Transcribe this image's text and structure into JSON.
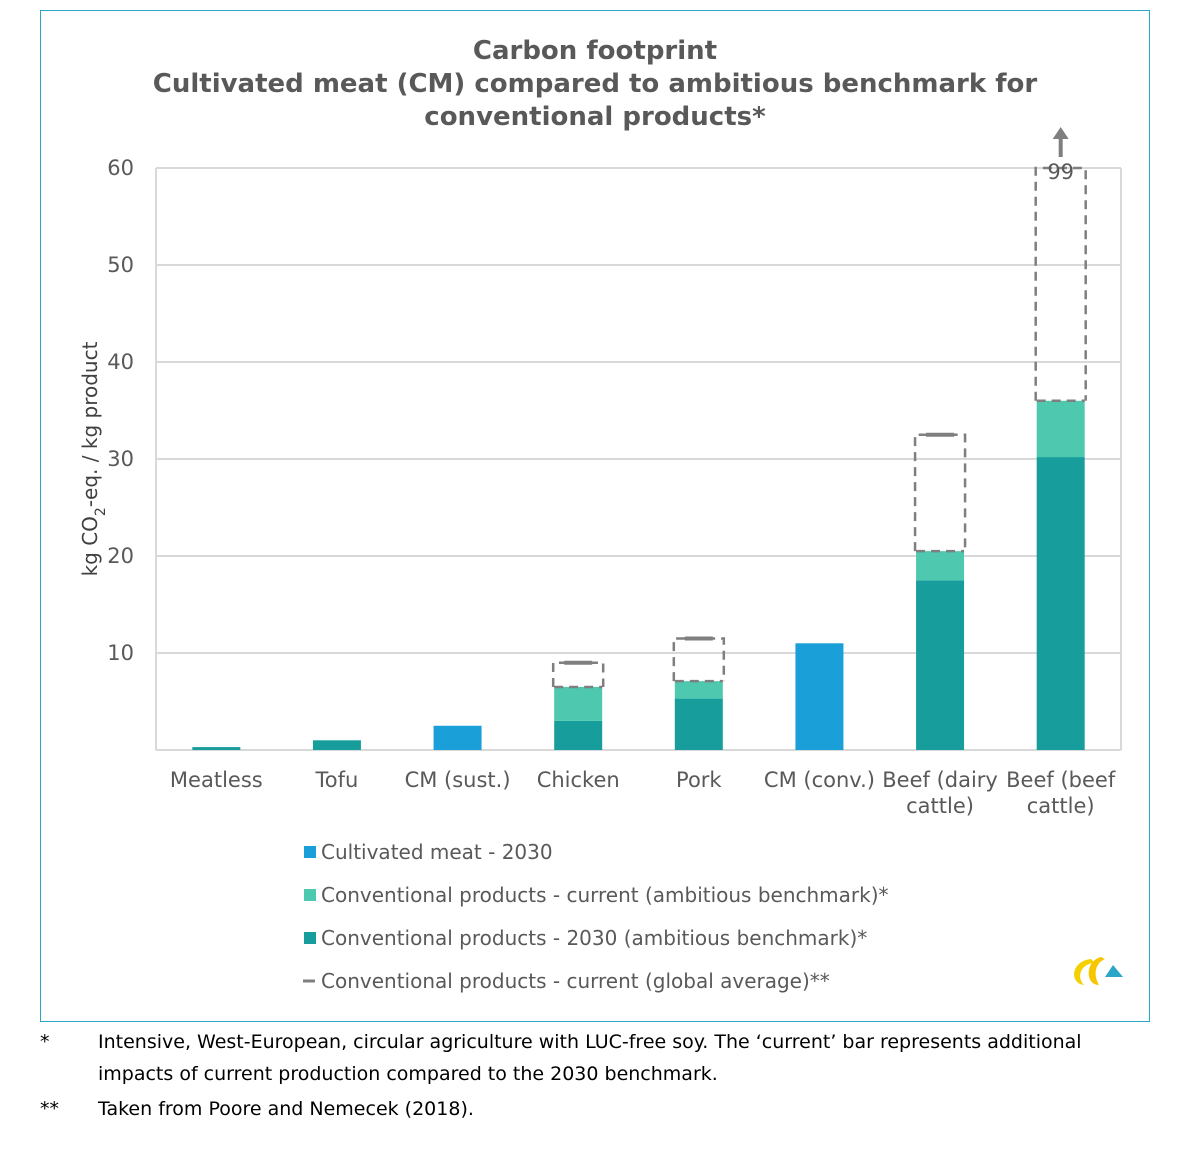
{
  "chart_data": {
    "type": "bar",
    "title": [
      "Carbon footprint",
      "Cultivated meat (CM) compared to ambitious benchmark for",
      "conventional products*"
    ],
    "ylabel": "kg CO2-eq. / kg product",
    "ylim": [
      0,
      60
    ],
    "yticks": [
      "10",
      "20",
      "30",
      "40",
      "50",
      "60"
    ],
    "grid": true,
    "stacked": true,
    "categories": [
      [
        "Meatless"
      ],
      [
        "Tofu"
      ],
      [
        "CM (sust.)"
      ],
      [
        "Chicken"
      ],
      [
        "Pork"
      ],
      [
        "CM (conv.)"
      ],
      [
        "Beef (dairy",
        "cattle)"
      ],
      [
        "Beef (beef",
        "cattle)"
      ]
    ],
    "series": [
      {
        "name": "Cultivated meat - 2030",
        "color": "#1a9fd8",
        "values": [
          null,
          null,
          2.5,
          null,
          null,
          11,
          null,
          null
        ]
      },
      {
        "name": "Conventional products - 2030 (ambitious benchmark)*",
        "color": "#179e9c",
        "values": [
          0.3,
          1.0,
          null,
          3.0,
          5.3,
          null,
          17.5,
          30.2
        ]
      },
      {
        "name": "Conventional products - current (ambitious benchmark)*",
        "color": "#4ec9b0",
        "values": [
          null,
          null,
          null,
          3.5,
          1.8,
          null,
          3.0,
          5.8
        ]
      },
      {
        "name": "Conventional products - current (global average)**",
        "color": "#7f7f7f",
        "style": "dashed",
        "totals": [
          null,
          null,
          null,
          9.0,
          11.5,
          null,
          32.5,
          99
        ]
      }
    ],
    "annotations": [
      {
        "category_index": 7,
        "text": "99",
        "arrow": "up"
      }
    ],
    "legend": {
      "position": "bottom",
      "items": [
        {
          "label": "Cultivated meat - 2030",
          "color": "#1a9fd8",
          "marker": "square"
        },
        {
          "label": "Conventional products - current (ambitious benchmark)*",
          "color": "#4ec9b0",
          "marker": "square"
        },
        {
          "label": "Conventional products - 2030 (ambitious benchmark)*",
          "color": "#179e9c",
          "marker": "square"
        },
        {
          "label": "Conventional products - current (global average)**",
          "color": "#7f7f7f",
          "marker": "dash"
        }
      ]
    }
  },
  "footnotes": [
    {
      "mark": "*",
      "text": "Intensive, West-European, circular agriculture with LUC-free soy. The ‘current’ bar represents additional impacts of current production compared to the 2030 benchmark."
    },
    {
      "mark": "**",
      "text": "Taken from Poore and Nemecek (2018)."
    }
  ],
  "logo": {
    "name": "ce-delft-logo",
    "colors": [
      "#f5d000",
      "#2aa6c7"
    ]
  }
}
